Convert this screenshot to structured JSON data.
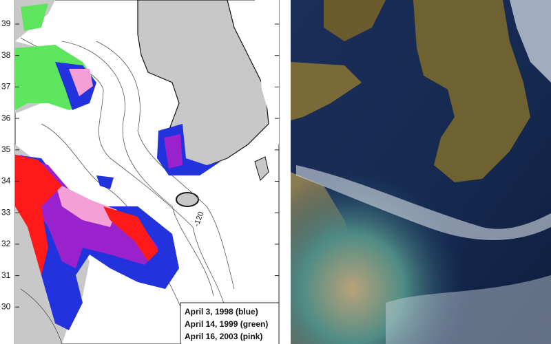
{
  "left_map": {
    "latitude_labels": [
      "39",
      "38",
      "37",
      "36",
      "35",
      "34",
      "33",
      "32",
      "31",
      "30"
    ],
    "contour_label": "-120",
    "legend": [
      "April  3, 1998 (blue)",
      "April 14, 1999 (green)",
      "April 16, 2003 (pink)"
    ]
  }
}
